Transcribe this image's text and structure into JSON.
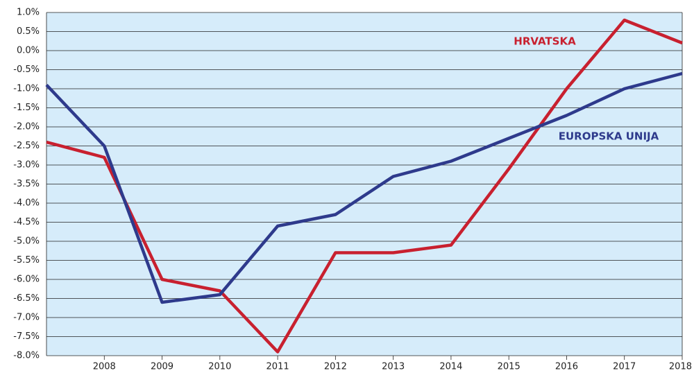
{
  "chart_data": {
    "type": "line",
    "categories": [
      null,
      "2008",
      "2009",
      "2010",
      "2011",
      "2012",
      "2013",
      "2014",
      "2015",
      "2016",
      "2017",
      "2018"
    ],
    "series": [
      {
        "name": "HRVATSKA",
        "color": "#c8202f",
        "values": [
          -2.4,
          -2.8,
          -6.0,
          -6.3,
          -7.9,
          -5.3,
          -5.3,
          -5.1,
          -3.1,
          -1.0,
          0.8,
          0.2
        ]
      },
      {
        "name": "EUROPSKA UNIJA",
        "color": "#2e3a8c",
        "values": [
          -0.9,
          -2.5,
          -6.6,
          -6.4,
          -4.6,
          -4.3,
          -3.3,
          -2.9,
          -2.3,
          -1.7,
          -1.0,
          -0.6
        ]
      }
    ],
    "ylim": [
      -8.0,
      1.0
    ],
    "yticks": [
      {
        "value": -8.0,
        "label": "-8.0%"
      },
      {
        "value": -7.5,
        "label": "-7.5%"
      },
      {
        "value": -7.0,
        "label": "-7.0%"
      },
      {
        "value": -6.5,
        "label": "-6.5%"
      },
      {
        "value": -6.0,
        "label": "-6.0%"
      },
      {
        "value": -5.5,
        "label": "-5.5%"
      },
      {
        "value": -5.0,
        "label": "-5.0%"
      },
      {
        "value": -4.5,
        "label": "-4.5%"
      },
      {
        "value": -4.0,
        "label": "-4.0%"
      },
      {
        "value": -3.5,
        "label": "-3.5%"
      },
      {
        "value": -3.0,
        "label": "-3.0%"
      },
      {
        "value": -2.5,
        "label": "-2.5%"
      },
      {
        "value": -2.0,
        "label": "-2.0%"
      },
      {
        "value": -1.5,
        "label": "-1.5%"
      },
      {
        "value": -1.0,
        "label": "-1.0%"
      },
      {
        "value": -0.5,
        "label": "-0.5%"
      },
      {
        "value": 0.0,
        "label": "0.0%"
      },
      {
        "value": 0.5,
        "label": "0.5%"
      },
      {
        "value": 1.0,
        "label": "1.0%"
      }
    ],
    "grid": true,
    "background": "#d6ecfa"
  }
}
